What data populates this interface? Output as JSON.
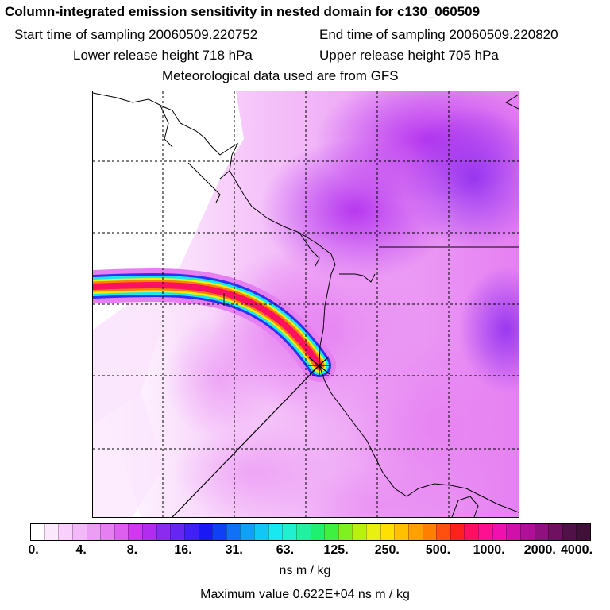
{
  "header": {
    "title": "Column-integrated emission sensitivity in nested domain for c130_060509",
    "start_time": "Start time of sampling 20060509.220752",
    "end_time": "End time of sampling 20060509.220820",
    "lower_release": "Lower release height  718 hPa",
    "upper_release": "Upper release height  705 hPa",
    "met_data": "Meteorological data used are from GFS"
  },
  "colorbar": {
    "tick_labels": [
      "0.",
      "4.",
      "8.",
      "16.",
      "31.",
      "63.",
      "125.",
      "250.",
      "500.",
      "1000.",
      "2000.",
      "4000."
    ],
    "colors": [
      "#ffffff",
      "#fce8fd",
      "#f8d0fb",
      "#f2b8f8",
      "#ec9ef5",
      "#e680f2",
      "#dd5ff0",
      "#cf38ee",
      "#b12cef",
      "#8c2bf0",
      "#6626f2",
      "#4020f4",
      "#1a18f5",
      "#1040f6",
      "#1070f6",
      "#10a0f6",
      "#10c8f6",
      "#18e8f0",
      "#20f0d0",
      "#20f0a0",
      "#20f070",
      "#40f040",
      "#80f020",
      "#b8f010",
      "#e8f010",
      "#ffe000",
      "#ffc000",
      "#ffa000",
      "#ff8000",
      "#ff5010",
      "#ff2020",
      "#ff1060",
      "#ff1090",
      "#f010b0",
      "#d010a8",
      "#b01098",
      "#901080",
      "#701060",
      "#501048",
      "#401038"
    ],
    "unit": "ns m / kg",
    "max_value": "Maximum value  0.622E+04 ns m / kg"
  }
}
